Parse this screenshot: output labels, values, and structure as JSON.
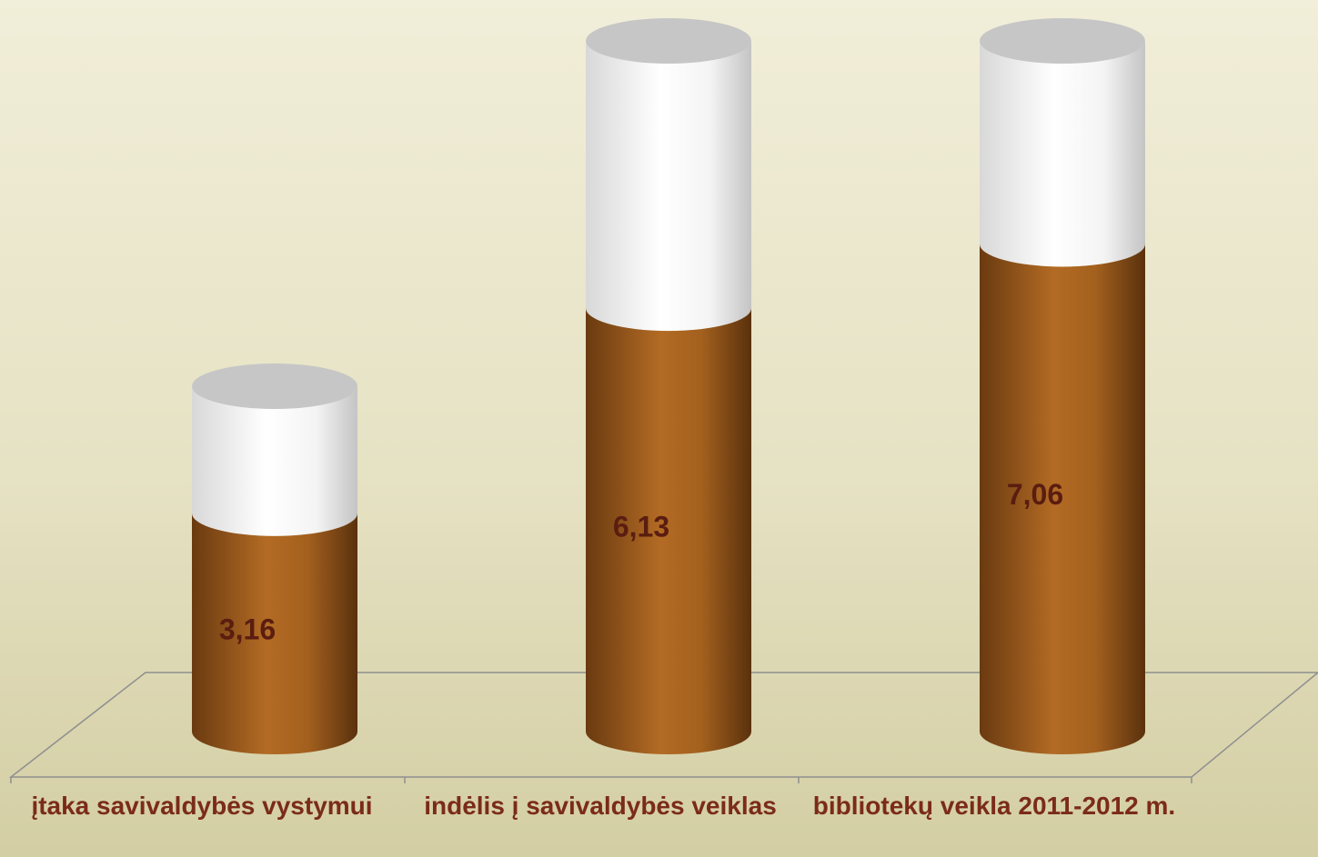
{
  "chart_data": {
    "type": "cylinder-stacked",
    "categories": [
      "įtaka savivaldybės vystymui",
      "indėlis į savivaldybės veiklas",
      "bibliotekų veikla 2011-2012 m."
    ],
    "series": [
      {
        "color": "#a8651f",
        "values": [
          3.16,
          6.13,
          7.06
        ],
        "value_labels": [
          "3,16",
          "6,13",
          "7,06"
        ]
      },
      {
        "color": "#ffffff",
        "values": [
          1.84,
          3.87,
          2.94
        ]
      }
    ],
    "ylim": [
      0,
      10
    ]
  }
}
